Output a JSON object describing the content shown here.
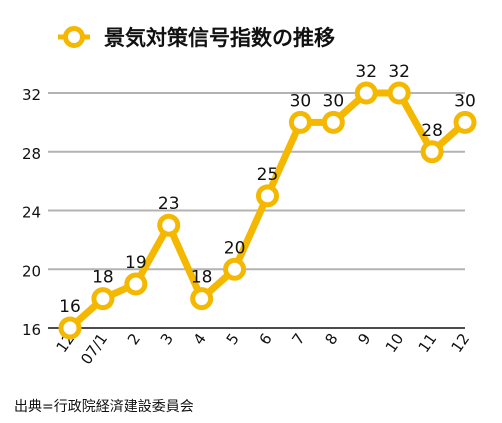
{
  "source_note": "出典=行政院経済建設委員会",
  "colors": {
    "series": "#f5b800",
    "grid": "#b3b3b3",
    "axis": "#111111",
    "text": "#111111"
  },
  "chart_data": {
    "type": "line",
    "title": "",
    "xlabel": "",
    "ylabel": "",
    "legend_position": "top",
    "grid": true,
    "categories": [
      "12",
      "07/1",
      "2",
      "3",
      "4",
      "5",
      "6",
      "7",
      "8",
      "9",
      "10",
      "11",
      "12"
    ],
    "series": [
      {
        "name": "景気対策信号指数の推移",
        "values": [
          16,
          18,
          19,
          23,
          18,
          20,
          25,
          30,
          30,
          32,
          32,
          28,
          30
        ]
      }
    ],
    "ylim": [
      16,
      32
    ],
    "yticks": [
      16,
      20,
      24,
      28,
      32
    ]
  }
}
